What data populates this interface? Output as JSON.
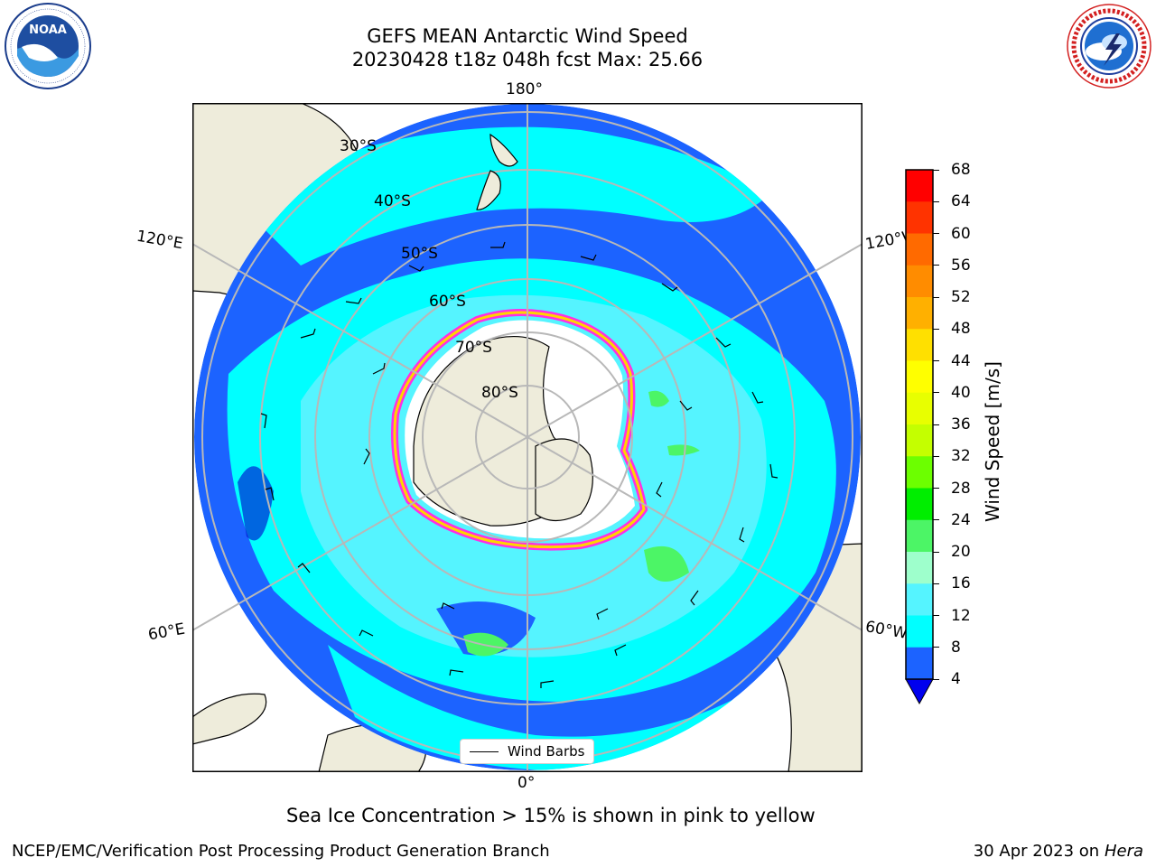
{
  "title": {
    "line1": "GEFS MEAN Antarctic Wind Speed",
    "line2": "20230428 t18z 048h fcst   Max: 25.66"
  },
  "logos": {
    "left": {
      "name": "NOAA",
      "ring_text": "NATIONAL OCEANIC AND ATMOSPHERIC ADMINISTRATION · U.S. DEPARTMENT OF COMMERCE"
    },
    "right": {
      "name": "NATIONAL WEATHER SERVICE"
    }
  },
  "map": {
    "projection": "south polar stereographic",
    "longitude_labels": {
      "top": "180°",
      "bottom": "0°",
      "upper_left": "120°E",
      "upper_right": "120°W",
      "lower_left": "60°E",
      "lower_right": "60°W"
    },
    "latitude_labels": [
      "30°S",
      "40°S",
      "50°S",
      "60°S",
      "70°S",
      "80°S"
    ],
    "legend_label": "Wind Barbs",
    "colors": {
      "ocean_low": "#1c63ff",
      "ocean_mid": "#00ffff",
      "ocean_high": "#55f4ff",
      "land": "#eeecdb",
      "ice": "#ffffff",
      "ice_edge": "#ff2fe3",
      "grid": "#b8b8b8"
    }
  },
  "colorbar": {
    "label": "Wind Speed [m/s]",
    "ticks": [
      "68",
      "64",
      "60",
      "56",
      "52",
      "48",
      "44",
      "40",
      "36",
      "32",
      "28",
      "24",
      "20",
      "16",
      "12",
      "8",
      "4"
    ],
    "colors": [
      "#ff0000",
      "#ff3300",
      "#ff6a00",
      "#ff8c00",
      "#ffb000",
      "#ffe000",
      "#ffff00",
      "#e8ff00",
      "#c4ff00",
      "#6cff00",
      "#00ee00",
      "#4cf566",
      "#9effcc",
      "#55f4ff",
      "#00ffff",
      "#1c63ff"
    ],
    "under_color": "#0000ee"
  },
  "note": "Sea Ice Concentration > 15% is shown in pink to yellow",
  "footer": {
    "left": "NCEP/EMC/Verification Post Processing Product Generation Branch",
    "right_date": "30 Apr 2023 on ",
    "right_host": "Hera"
  }
}
